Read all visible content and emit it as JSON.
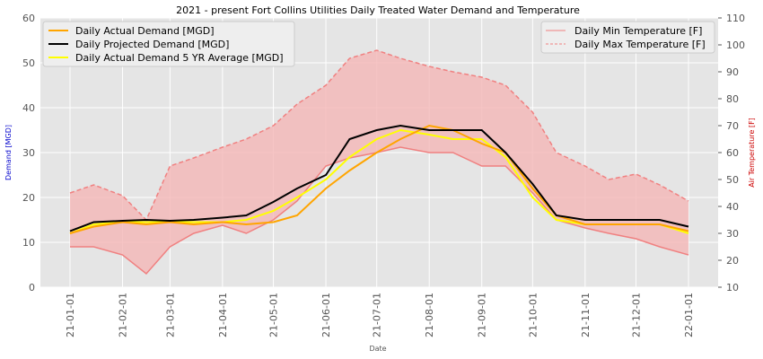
{
  "chart_data": {
    "type": "line",
    "title": "2021 - present Fort Collins Utilities Daily Treated Water Demand and Temperature",
    "xlabel": "Date",
    "ylabel_left": "Demand [MGD]",
    "ylabel_right": "Air Temperature [F]",
    "ylim_left": [
      0,
      60
    ],
    "ylim_right": [
      10,
      110
    ],
    "yticks_left": [
      "0",
      "10",
      "20",
      "30",
      "40",
      "50",
      "60"
    ],
    "yticks_right": [
      "10",
      "20",
      "30",
      "40",
      "50",
      "60",
      "70",
      "80",
      "90",
      "100",
      "110"
    ],
    "x_tick_labels": [
      "21-01-01",
      "21-02-01",
      "21-03-01",
      "21-04-01",
      "21-05-01",
      "21-06-01",
      "21-07-01",
      "21-08-01",
      "21-09-01",
      "21-10-01",
      "21-11-01",
      "21-12-01",
      "22-01-01"
    ],
    "grid": true,
    "legend_left_position": "upper-left",
    "legend_right_position": "upper-right",
    "legend_left": [
      {
        "label": "Daily Actual Demand [MGD]",
        "color": "#ffa500"
      },
      {
        "label": "Daily Projected Demand [MGD]",
        "color": "#000000"
      },
      {
        "label": "Daily Actual Demand 5 YR Average [MGD]",
        "color": "#ffff00"
      }
    ],
    "legend_right": [
      {
        "label": "Daily Min Temperature [F]",
        "color": "#f08080"
      },
      {
        "label": "Daily Max Temperature [F]",
        "color": "#f08080"
      }
    ],
    "colors": {
      "actual": "#ffa500",
      "projected": "#000000",
      "average": "#ffff00",
      "temperature": "#f08080",
      "temperature_fill": "#f4b6b6",
      "plot_bg": "#e5e5e5",
      "grid": "#ffffff",
      "ylabel_left": "#0000cc",
      "ylabel_right": "#cc0000"
    },
    "date_range": [
      "2021-01-01",
      "2022-01-01"
    ],
    "anchor_dates": [
      "2021-01-01",
      "2021-01-15",
      "2021-02-01",
      "2021-02-15",
      "2021-03-01",
      "2021-03-15",
      "2021-04-01",
      "2021-04-15",
      "2021-05-01",
      "2021-05-15",
      "2021-06-01",
      "2021-06-15",
      "2021-07-01",
      "2021-07-15",
      "2021-08-01",
      "2021-08-15",
      "2021-09-01",
      "2021-09-15",
      "2021-10-01",
      "2021-10-15",
      "2021-11-01",
      "2021-11-15",
      "2021-12-01",
      "2021-12-15",
      "2022-01-01"
    ],
    "series": [
      {
        "key": "actual",
        "name": "Daily Actual Demand [MGD]",
        "axis": "left",
        "values": [
          12,
          13.5,
          14.5,
          14,
          14.5,
          14,
          14.5,
          14,
          14.5,
          16,
          22,
          26,
          30,
          33,
          36,
          35,
          32,
          30,
          22,
          16,
          14,
          14,
          14,
          14,
          12.5
        ]
      },
      {
        "key": "projected",
        "name": "Daily Projected Demand [MGD]",
        "axis": "left",
        "values": [
          12.5,
          14.5,
          14.8,
          15,
          14.8,
          15,
          15.5,
          16,
          19,
          22,
          25,
          33,
          35,
          36,
          35,
          35,
          35,
          30,
          23,
          16,
          15,
          15,
          15,
          15,
          13.5
        ]
      },
      {
        "key": "average",
        "name": "Daily Actual Demand 5 YR Average [MGD]",
        "axis": "left",
        "values": [
          12,
          14,
          14.5,
          14.5,
          14.5,
          14.5,
          14.5,
          15,
          17,
          20,
          24,
          29,
          33,
          35,
          34,
          33,
          33,
          29,
          20,
          15,
          14,
          14,
          14,
          14,
          12
        ]
      },
      {
        "key": "temp_min",
        "name": "Daily Min Temperature [F]",
        "axis": "right",
        "values": [
          25,
          25,
          22,
          15,
          25,
          30,
          33,
          30,
          35,
          42,
          55,
          58,
          60,
          62,
          60,
          60,
          55,
          55,
          45,
          35,
          32,
          30,
          28,
          25,
          22
        ]
      },
      {
        "key": "temp_max",
        "name": "Daily Max Temperature [F]",
        "axis": "right",
        "values": [
          45,
          48,
          44,
          35,
          55,
          58,
          62,
          65,
          70,
          78,
          85,
          95,
          98,
          95,
          92,
          90,
          88,
          85,
          75,
          60,
          55,
          50,
          52,
          48,
          42
        ]
      }
    ]
  }
}
